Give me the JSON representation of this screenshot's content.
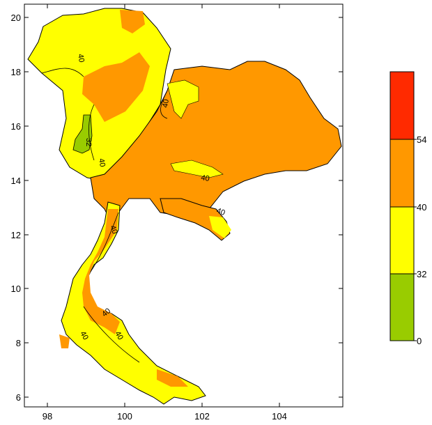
{
  "map": {
    "x_ticks": [
      "98",
      "100",
      "102",
      "104"
    ],
    "y_ticks": [
      "6",
      "8",
      "10",
      "12",
      "14",
      "16",
      "18",
      "20"
    ],
    "contour_labels": [
      "40",
      "40",
      "32",
      "40",
      "40",
      "40",
      "40",
      "40",
      "40",
      "40"
    ]
  },
  "legend": {
    "labels": [
      "54",
      "40",
      "32",
      "0"
    ],
    "colors": [
      "#ff2a00",
      "#ff9800",
      "#ffff00",
      "#99cc00"
    ]
  },
  "colors": {
    "over_54": "#ff2a00",
    "range_40_54": "#ff9800",
    "range_32_40": "#ffff00",
    "range_0_32": "#99cc00"
  }
}
